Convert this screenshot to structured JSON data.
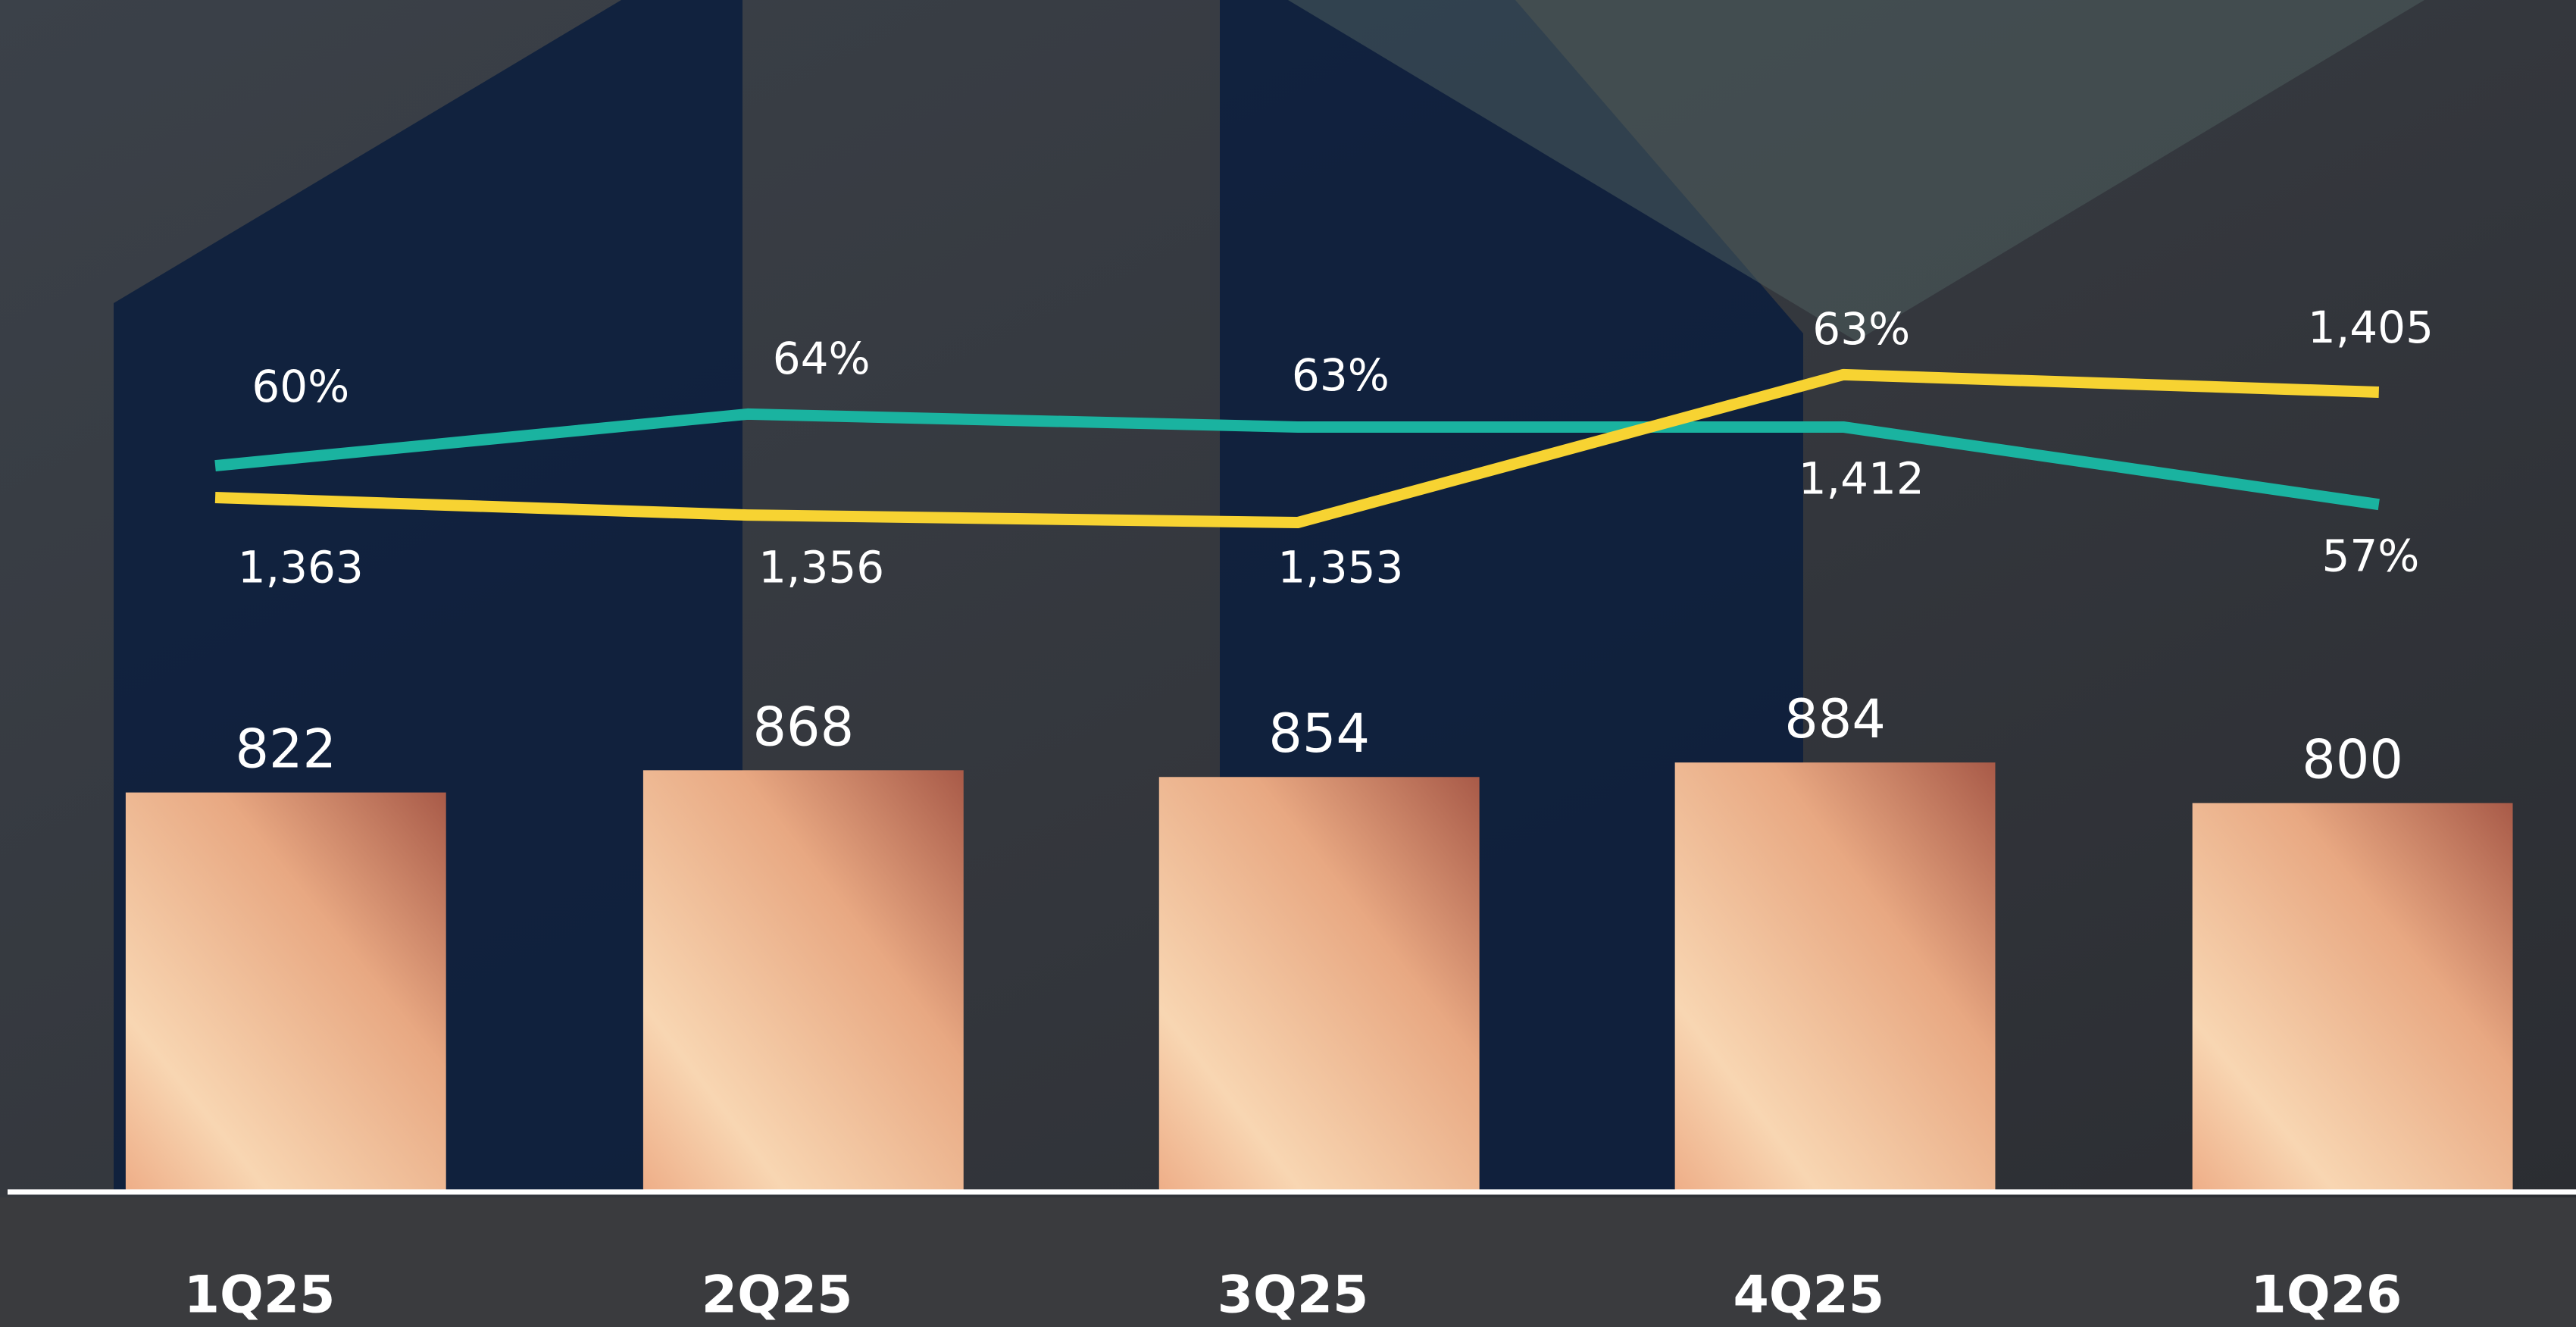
{
  "chart_data": {
    "type": "combo",
    "categories": [
      "1Q25",
      "2Q25",
      "3Q25",
      "4Q25",
      "1Q26"
    ],
    "series": [
      {
        "type": "bar",
        "color": "#e8a882",
        "values": [
          822,
          868,
          854,
          884,
          800
        ]
      },
      {
        "type": "line",
        "color": "#1ab3a0",
        "values": [
          60,
          64,
          63,
          63,
          57
        ],
        "value_labels": [
          "60%",
          "64%",
          "63%",
          "63%",
          "57%"
        ]
      },
      {
        "type": "line",
        "color": "#f7d332",
        "values": [
          1363,
          1356,
          1353,
          1412,
          1405
        ],
        "value_labels": [
          "1,363",
          "1,356",
          "1,353",
          "1,412",
          "1,405"
        ]
      }
    ]
  }
}
